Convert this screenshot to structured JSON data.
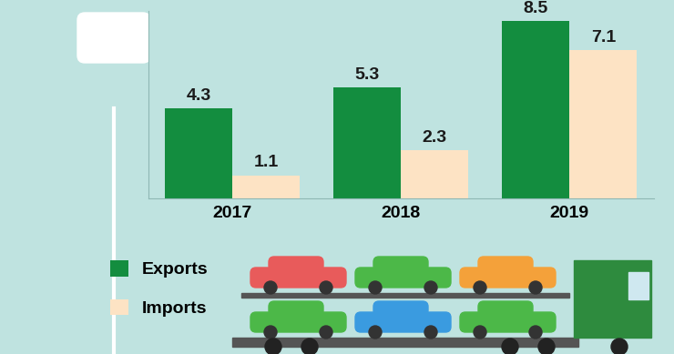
{
  "chart_data": {
    "type": "bar",
    "categories": [
      "2017",
      "2018",
      "2019"
    ],
    "series": [
      {
        "name": "Exports",
        "color": "#138d3f",
        "values": [
          4.3,
          5.3,
          8.5
        ]
      },
      {
        "name": "Imports",
        "color": "#fde3c4",
        "values": [
          1.1,
          2.3,
          7.1
        ]
      }
    ],
    "ylim": [
      0,
      9
    ],
    "yticks": [],
    "tick_labels": "x",
    "data_labels": true,
    "legend": "lower left",
    "grid": false
  }
}
